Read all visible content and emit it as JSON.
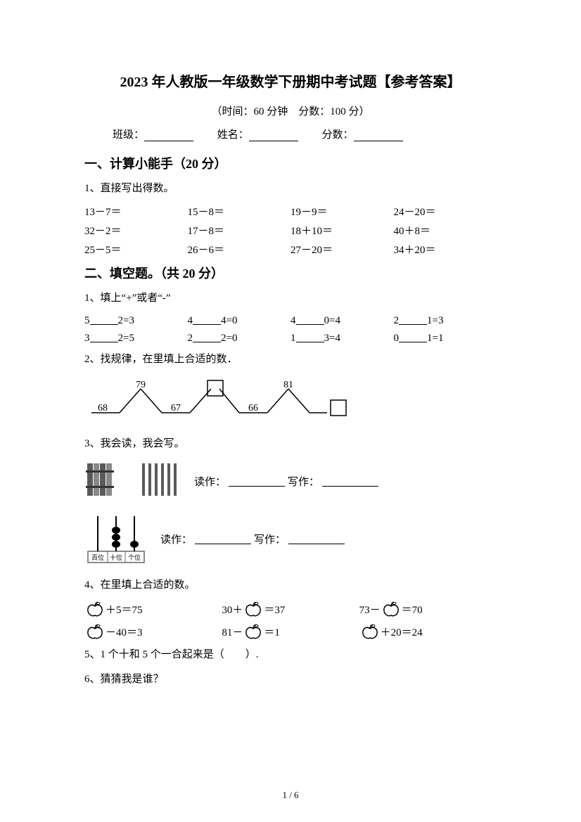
{
  "page": {
    "title": "2023 年人教版一年级数学下册期中考试题【参考答案】",
    "meta": "（时间：60 分钟　分数：100 分）",
    "class_label": "班级：",
    "name_label": "姓名：",
    "score_label": "分数：",
    "footer": "1 / 6"
  },
  "section1": {
    "heading": "一、计算小能手（20 分）",
    "q1": "1、直接写出得数。",
    "rows": [
      [
        "13－7＝",
        "15－8＝",
        "19－9＝",
        "24－20＝"
      ],
      [
        "32－2＝",
        "17－8＝",
        "18＋10＝",
        "40＋8＝"
      ],
      [
        "25－5＝",
        "26－6＝",
        "27－20＝",
        "34＋20＝"
      ]
    ]
  },
  "section2": {
    "heading": "二、填空题。（共 20 分）",
    "q1": "1、填上“+”或者“-”",
    "q1_rows": [
      [
        {
          "a": "5",
          "b": "2=3"
        },
        {
          "a": "4",
          "b": "4=0"
        },
        {
          "a": "4",
          "b": "0=4"
        },
        {
          "a": "2",
          "b": "1=3"
        }
      ],
      [
        {
          "a": "3",
          "b": "2=5"
        },
        {
          "a": "2",
          "b": "2=0"
        },
        {
          "a": "1",
          "b": "3=4"
        },
        {
          "a": "0",
          "b": "1=1"
        }
      ]
    ],
    "q2": "2、找规律，在里填上合适的数．",
    "q2_seq": {
      "vals": [
        "68",
        "79",
        "67",
        "",
        "66",
        "81",
        ""
      ]
    },
    "q3": "3、我会读，我会写。",
    "q3_read": "读作：",
    "q3_write": "写作：",
    "abacus_labels": [
      "百位",
      "十位",
      "个位"
    ],
    "q4": "4、在里填上合适的数。",
    "q4_rows": [
      [
        {
          "pre": "",
          "mid": "＋5＝75",
          "apple_pos": "start"
        },
        {
          "pre": "30＋",
          "mid": "＝37",
          "apple_pos": "mid"
        },
        {
          "pre": "73－",
          "mid": "＝70",
          "apple_pos": "mid"
        }
      ],
      [
        {
          "pre": "",
          "mid": "－40＝3",
          "apple_pos": "start"
        },
        {
          "pre": "81－",
          "mid": "＝1",
          "apple_pos": "mid"
        },
        {
          "pre": "",
          "mid": "＋20＝24",
          "apple_pos": "start"
        }
      ]
    ],
    "q5": "5、1 个十和 5 个一合起来是（　　）.",
    "q6": "6、猜猜我是谁？"
  },
  "colors": {
    "text": "#000000",
    "bg": "#ffffff",
    "stick_dark": "#5a5a5a",
    "stick_light": "#b8b8b8",
    "abacus_frame": "#888888"
  }
}
